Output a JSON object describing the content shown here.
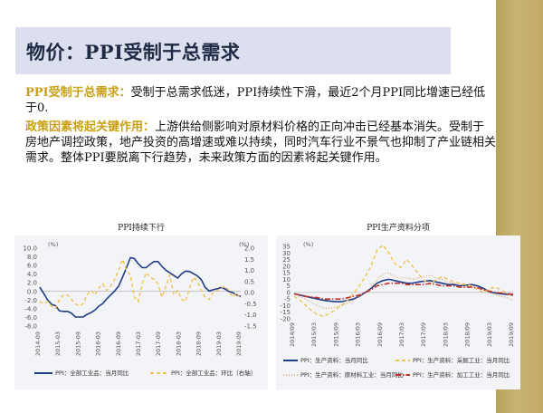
{
  "header": {
    "title": "物价：PPI受制于总需求"
  },
  "paragraphs": [
    {
      "lead": "PPI受制于总需求：",
      "body": "受制于总需求低迷，PPI持续性下滑，最近2个月PPI同比增速已经低于0."
    },
    {
      "lead": "政策因素将起关键作用：",
      "body": "上游供给侧影响对原材料价格的正向冲击已经基本消失。受制于房地产调控政策，地产投资的高增速或难以持续，同时汽车行业不景气也抑制了产业链相关需求。整体PPI要脱离下行趋势，未来政策方面的因素将起关键作用。"
    }
  ],
  "colors": {
    "dark_blue": "#1f3c88",
    "gold": "#f2c14e",
    "red": "#c0312b",
    "brown": "#d9a05b"
  },
  "chart_data": [
    {
      "type": "line",
      "title": "PPI持续下行",
      "x_ticks": [
        "2014-09",
        "2015-03",
        "2015-09",
        "2016-03",
        "2016-09",
        "2017-03",
        "2017-09",
        "2018-03",
        "2018-09",
        "2019-03",
        "2019-09"
      ],
      "left_axis": {
        "unit": "(%)",
        "ticks": [
          "10.0",
          "8.0",
          "6.0",
          "4.0",
          "2.0",
          "0.0",
          "-2.0",
          "-4.0",
          "-6.0",
          "-8.0"
        ],
        "ylim": [
          -8,
          10
        ]
      },
      "right_axis": {
        "unit": "(%)",
        "ticks": [
          "2.0",
          "1.5",
          "1.0",
          "0.5",
          "0.0",
          "-0.5",
          "-1.0",
          "-1.5"
        ],
        "ylim": [
          -1.5,
          2.0
        ]
      },
      "series": [
        {
          "name": "PPI：全部工业品：当月同比",
          "axis": "left",
          "style": "solid",
          "color": "#1f3c88",
          "values": [
            1.0,
            -0.5,
            -2.0,
            -3.0,
            -3.3,
            -4.5,
            -4.6,
            -4.6,
            -5.0,
            -5.9,
            -5.9,
            -5.9,
            -5.3,
            -4.9,
            -4.3,
            -3.4,
            -2.8,
            -1.7,
            -0.8,
            0.1,
            1.2,
            3.3,
            5.5,
            7.8,
            7.6,
            6.4,
            5.5,
            5.5,
            6.3,
            6.9,
            6.9,
            5.8,
            4.9,
            4.3,
            3.7,
            3.1,
            4.1,
            4.7,
            4.6,
            4.1,
            3.6,
            2.7,
            0.9,
            0.1,
            0.4,
            0.6,
            0.9,
            0.6,
            0.0,
            -0.3,
            -0.8,
            -1.2
          ]
        },
        {
          "name": "PPI：全部工业品：环比（右轴）",
          "axis": "right",
          "style": "dashed",
          "color": "#f2c14e",
          "values": [
            -0.4,
            -0.5,
            -0.4,
            -0.6,
            -0.7,
            -0.3,
            -0.1,
            -0.1,
            -0.3,
            -0.5,
            -0.6,
            -0.5,
            -0.1,
            0.1,
            -0.1,
            0.2,
            0.4,
            0.1,
            0.3,
            0.6,
            1.0,
            1.5,
            1.0,
            0.8,
            -0.2,
            -0.4,
            0.4,
            0.9,
            0.7,
            0.6,
            0.4,
            -0.2,
            0.3,
            0.8,
            -0.1,
            0.1,
            -0.3,
            -0.4,
            0.2,
            0.7,
            0.5,
            0.1,
            -0.2,
            -0.3,
            0.0,
            0.1,
            0.2,
            0.3,
            0.1,
            -0.2,
            0.0,
            -0.3
          ]
        }
      ],
      "grid": false,
      "legend": "bottom"
    },
    {
      "type": "line",
      "title": "PPI生产资料分项",
      "x_ticks": [
        "2014/09",
        "2015/03",
        "2015/09",
        "2016/03",
        "2016/09",
        "2017/03",
        "2017/09",
        "2018/03",
        "2018/09",
        "2019/03",
        "2019/09"
      ],
      "axis": {
        "unit": "(%)",
        "ticks": [
          "35",
          "30",
          "25",
          "20",
          "15",
          "10",
          "5",
          "0",
          "-5",
          "-10",
          "-15",
          "-20"
        ],
        "ylim": [
          -20,
          35
        ]
      },
      "series": [
        {
          "name": "PPI：生产资料：当月同比",
          "style": "solid",
          "color": "#1f3c88",
          "values": [
            -1,
            -2,
            -3,
            -4,
            -5,
            -6,
            -6.5,
            -7,
            -7,
            -6,
            -5,
            -3,
            0,
            3,
            7,
            9,
            10,
            9,
            8,
            7,
            7,
            8,
            8.5,
            9,
            8,
            7,
            6,
            6,
            5,
            5.5,
            6,
            5,
            3,
            0.5,
            -0.5,
            -1,
            -1.5,
            -2
          ]
        },
        {
          "name": "PPI：生产资料：采掘工业：当月同比",
          "style": "dashed",
          "color": "#f2c14e",
          "values": [
            -3,
            -6,
            -10,
            -14,
            -17,
            -18,
            -16,
            -13,
            -10,
            -6,
            -1,
            5,
            12,
            20,
            32,
            36,
            30,
            22,
            19,
            25,
            20,
            14,
            9,
            6,
            10,
            12,
            10,
            8,
            7,
            6,
            5,
            2,
            0,
            3,
            4,
            2,
            -1,
            -3
          ]
        },
        {
          "name": "PPI：生产资料：原材料工业：当月同比",
          "style": "dotted",
          "color": "#d9a05b",
          "values": [
            -1,
            -3,
            -5,
            -8,
            -10,
            -12,
            -12,
            -11,
            -10,
            -8,
            -6,
            -3,
            0,
            4,
            10,
            14,
            15,
            12,
            11,
            11,
            10,
            11,
            12,
            13,
            11,
            10,
            8,
            7,
            6,
            5,
            5,
            4,
            2,
            0,
            -2,
            -3,
            -4,
            -6
          ]
        },
        {
          "name": "PPI：生产资料：加工工业：当月同比",
          "style": "dashdot",
          "color": "#c0312b",
          "values": [
            -1,
            -2,
            -3,
            -3.5,
            -4,
            -5,
            -5,
            -5,
            -5,
            -4,
            -3,
            -2,
            0,
            2,
            5,
            6,
            7,
            7,
            7,
            6,
            6,
            6,
            6,
            7,
            6,
            5,
            5,
            5,
            4,
            4,
            4,
            3.5,
            2,
            1,
            0,
            -0.5,
            -1,
            -1.5
          ]
        }
      ],
      "grid": false,
      "legend": "bottom"
    }
  ]
}
